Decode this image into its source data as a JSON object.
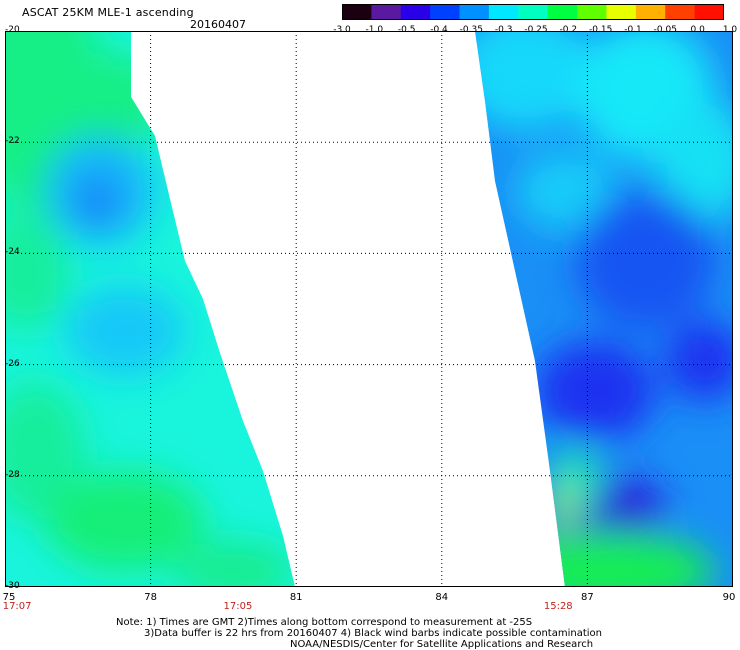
{
  "header": {
    "title": "ASCAT 25KM MLE-1 ascending",
    "date": "20160407"
  },
  "colorbar": {
    "labels": [
      "-3.0",
      "-1.0",
      "-0.5",
      "-0.4",
      "-0.35",
      "-0.3",
      "-0.25",
      "-0.2",
      "-0.15",
      "-0.1",
      "-0.05",
      "0.0",
      "1.0"
    ],
    "colors": [
      "#1a0010",
      "#5a1aa0",
      "#2a00e8",
      "#0040ff",
      "#0090ff",
      "#00e8ff",
      "#00ffc0",
      "#00ff40",
      "#60ff00",
      "#e8ff00",
      "#ffb000",
      "#ff4000",
      "#ff1000"
    ]
  },
  "axes": {
    "x_ticks": [
      "75",
      "78",
      "81",
      "84",
      "87",
      "90"
    ],
    "y_ticks": [
      "-20",
      "-22",
      "-24",
      "-26",
      "-28",
      "-30"
    ],
    "x_range": [
      75,
      90
    ],
    "y_range": [
      -30,
      -20
    ]
  },
  "time_labels": [
    {
      "text": "17:07",
      "lon": 75.25
    },
    {
      "text": "17:05",
      "lon": 79.8
    },
    {
      "text": "15:28",
      "lon": 86.4
    }
  ],
  "notes": {
    "line1": "Note: 1) Times are GMT 2)Times along bottom correspond to measurement at -25S",
    "line2": "3)Data buffer is 22 hrs from 20160407 4) Black wind barbs indicate possible contamination",
    "line3": "NOAA/NESDIS/Center for Satellite Applications and Research"
  }
}
